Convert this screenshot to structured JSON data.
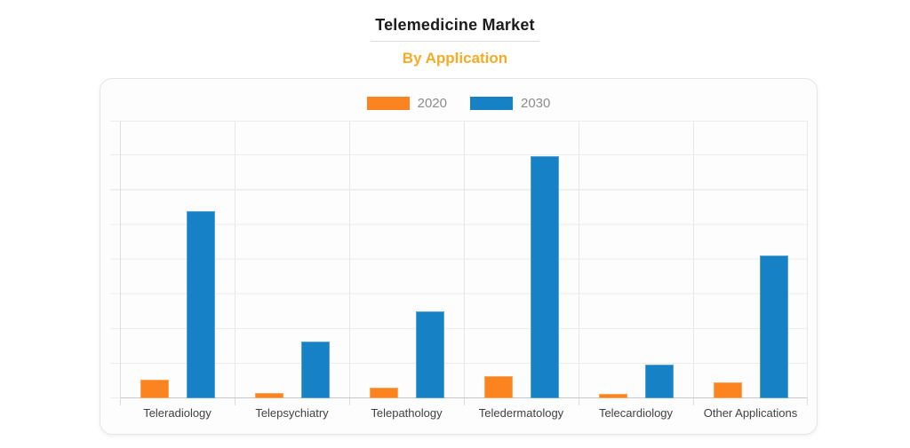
{
  "header": {
    "title": "Telemedicine Market",
    "subtitle": "By Application"
  },
  "chart_data": {
    "type": "bar",
    "title": "Telemedicine Market",
    "subtitle": "By Application",
    "categories": [
      "Teleradiology",
      "Telepsychiatry",
      "Telepathology",
      "Teledermatology",
      "Telecardiology",
      "Other Applications"
    ],
    "series": [
      {
        "name": "2020",
        "color": "#fb8420",
        "values": [
          6.7,
          1.9,
          3.8,
          8.0,
          1.6,
          5.8
        ]
      },
      {
        "name": "2030",
        "color": "#1682c5",
        "values": [
          67.4,
          20.4,
          31.3,
          87.3,
          12.1,
          51.4
        ]
      }
    ],
    "value_note": "y-axis has no numeric tick labels; values estimated as percent of axis maximum",
    "xlabel": "",
    "ylabel": "",
    "ylim": [
      0,
      100
    ],
    "y_gridlines": 8,
    "x_columns": 6,
    "grid": true,
    "legend_position": "top-center"
  },
  "colors": {
    "subtitle_accent": "#f5ab27",
    "series_2020": "#fb8420",
    "series_2030": "#1682c5",
    "legend_text": "#8c8c8c",
    "axis_label_text": "#414141",
    "gridline": "#ececec"
  }
}
